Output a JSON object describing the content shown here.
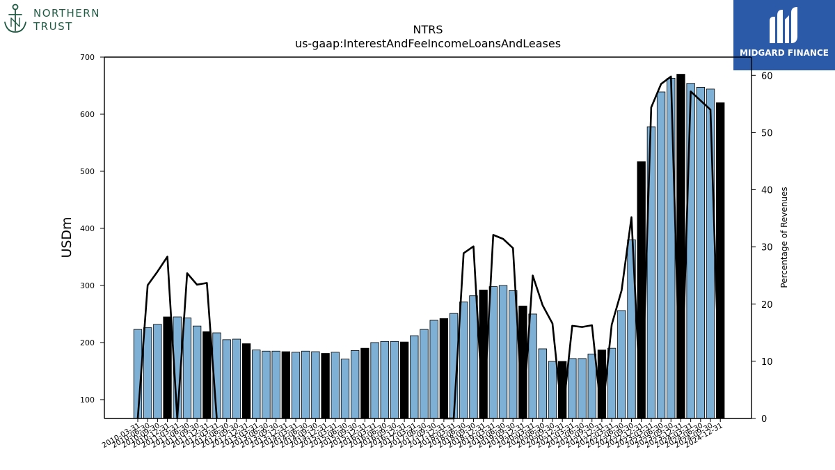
{
  "logos": {
    "left": {
      "line1": "NORTHERN",
      "line2": "TRUST",
      "icon": "anchor-icon"
    },
    "right": {
      "text": "MIDGARD FINANCE",
      "icon": "midgard-mark-icon"
    }
  },
  "chart_data": {
    "type": "bar",
    "title": "NTRS",
    "subtitle": "us-gaap:InterestAndFeeIncomeLoansAndLeases",
    "ylabel": "USDm",
    "y2label": "Percentage of Revenues",
    "ylim": [
      67,
      700
    ],
    "y2lim": [
      0,
      63.2
    ],
    "yticks": [
      100,
      200,
      300,
      400,
      500,
      600,
      700
    ],
    "y2ticks": [
      0,
      10,
      20,
      30,
      40,
      50,
      60
    ],
    "grid": false,
    "colors": {
      "bar_light": "#7eb0d5",
      "bar_dark": "#000000",
      "line": "#000000"
    },
    "categories": [
      "2010-03-31",
      "2010-06-30",
      "2010-09-30",
      "2010-12-31",
      "2011-03-31",
      "2011-06-30",
      "2011-09-30",
      "2011-12-31",
      "2012-03-31",
      "2012-06-30",
      "2012-09-30",
      "2012-12-31",
      "2013-03-31",
      "2013-06-30",
      "2013-09-30",
      "2013-12-31",
      "2014-03-31",
      "2014-06-30",
      "2014-09-30",
      "2014-12-31",
      "2015-03-31",
      "2015-06-30",
      "2015-09-30",
      "2015-12-31",
      "2016-03-31",
      "2016-06-30",
      "2016-09-30",
      "2016-12-31",
      "2017-03-31",
      "2017-06-30",
      "2017-09-30",
      "2017-12-31",
      "2018-03-31",
      "2018-06-30",
      "2018-09-30",
      "2018-12-31",
      "2019-03-31",
      "2019-06-30",
      "2019-09-30",
      "2019-12-31",
      "2020-03-31",
      "2020-06-30",
      "2020-09-30",
      "2020-12-31",
      "2021-03-31",
      "2021-06-30",
      "2021-09-30",
      "2021-12-31",
      "2022-03-31",
      "2022-06-30",
      "2022-09-30",
      "2022-12-31",
      "2023-03-31",
      "2023-06-30",
      "2023-09-30",
      "2023-12-31",
      "2024-03-31",
      "2024-06-30",
      "2024-09-30",
      "2024-12-31"
    ],
    "values": [
      223,
      226,
      232,
      245,
      245,
      243,
      229,
      219,
      217,
      205,
      206,
      198,
      187,
      185,
      185,
      184,
      183,
      185,
      184,
      181,
      183,
      171,
      186,
      190,
      200,
      202,
      202,
      201,
      212,
      223,
      239,
      242,
      251,
      271,
      282,
      292,
      298,
      300,
      291,
      264,
      250,
      189,
      167,
      167,
      172,
      172,
      180,
      187,
      190,
      256,
      380,
      517,
      578,
      639,
      663,
      670,
      654,
      647,
      644,
      620
    ],
    "dark_bars": [
      3,
      7,
      11,
      15,
      19,
      23,
      27,
      31,
      35,
      39,
      43,
      47,
      51,
      55,
      59
    ],
    "series": [
      {
        "values": [
          0,
          23.3,
          25.7,
          28.3,
          0,
          25.4,
          23.4,
          23.7,
          0,
          null,
          null,
          null,
          null,
          null,
          null,
          null,
          null,
          null,
          null,
          null,
          null,
          null,
          null,
          null,
          null,
          null,
          null,
          null,
          null,
          null,
          null,
          0,
          0,
          28.9,
          30.1,
          0,
          32.1,
          31.4,
          29.8,
          0,
          25,
          19.8,
          16.6,
          0,
          16.2,
          16,
          16.3,
          0,
          16.4,
          22.4,
          35.2,
          0,
          54.4,
          58.5,
          59.8,
          0,
          57.2,
          55.6,
          54,
          0
        ]
      }
    ]
  }
}
